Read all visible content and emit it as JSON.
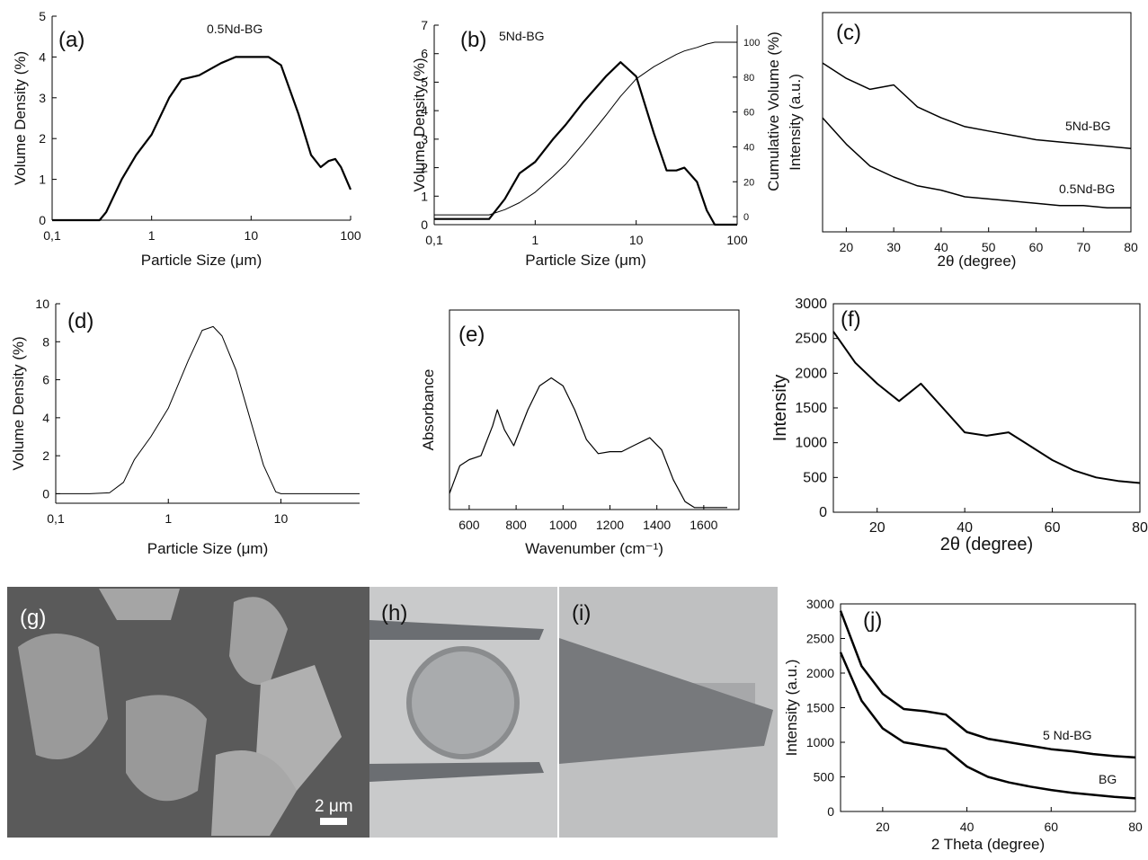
{
  "chart_data": [
    {
      "type": "line",
      "label": "(a)",
      "annotation": "0.5Nd-BG",
      "xlabel": "Particle Size (μm)",
      "ylabel": "Volume Density (%)",
      "xscale": "log",
      "xlim": [
        0.1,
        100
      ],
      "xticks": [
        {
          "value": 0.1,
          "label": "0,1"
        },
        1,
        10,
        100
      ],
      "ylim": [
        0,
        5
      ],
      "yticks": [
        0,
        1,
        2,
        3,
        4,
        5
      ],
      "x": [
        0.1,
        0.2,
        0.3,
        0.35,
        0.5,
        0.7,
        1,
        1.5,
        2,
        3,
        5,
        7,
        10,
        15,
        20,
        30,
        40,
        50,
        60,
        70,
        80,
        100
      ],
      "series": [
        {
          "color": "#000000",
          "values": [
            0,
            0,
            0,
            0.2,
            1,
            1.6,
            2.1,
            3,
            3.45,
            3.55,
            3.85,
            4,
            4,
            4,
            3.8,
            2.6,
            1.6,
            1.3,
            1.45,
            1.5,
            1.3,
            0.75
          ]
        }
      ]
    },
    {
      "type": "line",
      "label": "(b)",
      "annotation": "5Nd-BG",
      "xlabel": "Particle Size (μm)",
      "ylabel": "Volume Density (%)",
      "y2label": "Cumulative Volume (%)",
      "xscale": "log",
      "xlim": [
        0.1,
        100
      ],
      "xticks": [
        {
          "value": 0.1,
          "label": "0,1"
        },
        1,
        10,
        100
      ],
      "ylim": [
        0,
        7
      ],
      "yticks": [
        0,
        1,
        2,
        3,
        4,
        5,
        6,
        7
      ],
      "y2lim": [
        -4.6,
        109.8
      ],
      "y2ticks": [
        0,
        20,
        40,
        60,
        80,
        100
      ],
      "x": [
        0.1,
        0.2,
        0.3,
        0.35,
        0.5,
        0.7,
        1,
        1.5,
        2,
        3,
        5,
        7,
        10,
        15,
        20,
        25,
        30,
        40,
        50,
        60,
        100
      ],
      "series": [
        {
          "color": "#000000",
          "values": [
            0.2,
            0.2,
            0.2,
            0.2,
            0.9,
            1.8,
            2.2,
            3,
            3.5,
            4.3,
            5.2,
            5.7,
            5.2,
            3.2,
            1.9,
            1.9,
            2,
            1.5,
            0.5,
            0,
            0
          ]
        },
        {
          "color": "#000000",
          "axis": "y2",
          "values": [
            1,
            1,
            1,
            1,
            4,
            8,
            14,
            23,
            30,
            42,
            58,
            69,
            79,
            86,
            90,
            93,
            95,
            97,
            99,
            100,
            100
          ]
        }
      ]
    },
    {
      "type": "line",
      "label": "(c)",
      "xlabel": "2θ  (degree)",
      "ylabel": "Intensity (a.u.)",
      "xlim": [
        15,
        80
      ],
      "xticks": [
        20,
        30,
        40,
        50,
        60,
        70,
        80
      ],
      "ylim": [
        0,
        1
      ],
      "x": [
        15,
        20,
        25,
        30,
        35,
        40,
        45,
        50,
        55,
        60,
        65,
        70,
        75,
        80
      ],
      "series": [
        {
          "name": "5Nd-BG",
          "color": "#000000",
          "values": [
            0.77,
            0.7,
            0.65,
            0.67,
            0.57,
            0.52,
            0.48,
            0.46,
            0.44,
            0.42,
            0.41,
            0.4,
            0.39,
            0.38
          ]
        },
        {
          "name": "0.5Nd-BG",
          "color": "#000000",
          "values": [
            0.52,
            0.4,
            0.3,
            0.25,
            0.21,
            0.19,
            0.16,
            0.15,
            0.14,
            0.13,
            0.12,
            0.12,
            0.11,
            0.11
          ]
        }
      ]
    },
    {
      "type": "line",
      "label": "(d)",
      "xlabel": "Particle Size (μm)",
      "ylabel": "Volume Density (%)",
      "xscale": "log",
      "xlim": [
        0.1,
        50
      ],
      "xticks": [
        {
          "value": 0.1,
          "label": "0,1"
        },
        1,
        10
      ],
      "ylim": [
        -0.5,
        10
      ],
      "yticks": [
        0,
        2,
        4,
        6,
        8,
        10
      ],
      "x": [
        0.1,
        0.2,
        0.3,
        0.4,
        0.5,
        0.7,
        1,
        1.5,
        2,
        2.5,
        3,
        4,
        5,
        7,
        9,
        10,
        15,
        50
      ],
      "series": [
        {
          "color": "#000000",
          "values": [
            0,
            0,
            0.05,
            0.6,
            1.8,
            3,
            4.5,
            7,
            8.6,
            8.8,
            8.3,
            6.5,
            4.5,
            1.5,
            0.1,
            0,
            0,
            0
          ]
        }
      ]
    },
    {
      "type": "line",
      "label": "(e)",
      "xlabel": "Wavenumber (cm⁻¹)",
      "ylabel": "Absorbance",
      "xlim": [
        516,
        1750
      ],
      "xticks": [
        600,
        800,
        1000,
        1200,
        1400,
        1600
      ],
      "ylim": [
        0,
        1
      ],
      "x": [
        516,
        560,
        600,
        650,
        700,
        720,
        750,
        790,
        850,
        900,
        950,
        1000,
        1050,
        1100,
        1150,
        1200,
        1250,
        1300,
        1370,
        1420,
        1470,
        1520,
        1560,
        1700
      ],
      "series": [
        {
          "color": "#000000",
          "values": [
            0.08,
            0.22,
            0.25,
            0.27,
            0.42,
            0.5,
            0.4,
            0.32,
            0.5,
            0.62,
            0.66,
            0.62,
            0.5,
            0.35,
            0.28,
            0.29,
            0.29,
            0.32,
            0.36,
            0.3,
            0.15,
            0.04,
            0.01,
            0.01
          ]
        }
      ]
    },
    {
      "type": "line",
      "label": "(f)",
      "xlabel": "2θ (degree)",
      "ylabel": "Intensity",
      "xlim": [
        10,
        80
      ],
      "xticks": [
        20,
        40,
        60,
        80
      ],
      "ylim": [
        0,
        3000
      ],
      "yticks": [
        0,
        500,
        1000,
        1500,
        2000,
        2500,
        3000
      ],
      "x": [
        10,
        15,
        20,
        25,
        30,
        35,
        40,
        45,
        50,
        55,
        60,
        65,
        70,
        75,
        80
      ],
      "series": [
        {
          "color": "#000000",
          "values": [
            2600,
            2150,
            1850,
            1600,
            1850,
            1500,
            1150,
            1100,
            1150,
            950,
            750,
            600,
            500,
            450,
            420
          ]
        }
      ]
    },
    {
      "type": "line",
      "label": "(j)",
      "xlabel": "2 Theta (degree)",
      "ylabel": "Intensity (a.u.)",
      "xlim": [
        10,
        80
      ],
      "xticks": [
        20,
        40,
        60,
        80
      ],
      "ylim": [
        0,
        3000
      ],
      "yticks": [
        0,
        500,
        1000,
        1500,
        2000,
        2500,
        3000
      ],
      "x": [
        10,
        15,
        20,
        25,
        30,
        35,
        40,
        45,
        50,
        55,
        60,
        65,
        70,
        75,
        80
      ],
      "series": [
        {
          "name": "5 Nd-BG",
          "color": "#000000",
          "values": [
            2900,
            2100,
            1700,
            1480,
            1450,
            1400,
            1150,
            1050,
            1000,
            950,
            900,
            870,
            830,
            800,
            780
          ]
        },
        {
          "name": "BG",
          "color": "#000000",
          "values": [
            2300,
            1600,
            1200,
            1000,
            950,
            900,
            650,
            500,
            420,
            360,
            310,
            270,
            240,
            210,
            190
          ]
        }
      ]
    }
  ],
  "photos": [
    {
      "label": "(g)",
      "scale_bar": "2 μm"
    },
    {
      "label": "(h)"
    },
    {
      "label": "(i)"
    }
  ]
}
